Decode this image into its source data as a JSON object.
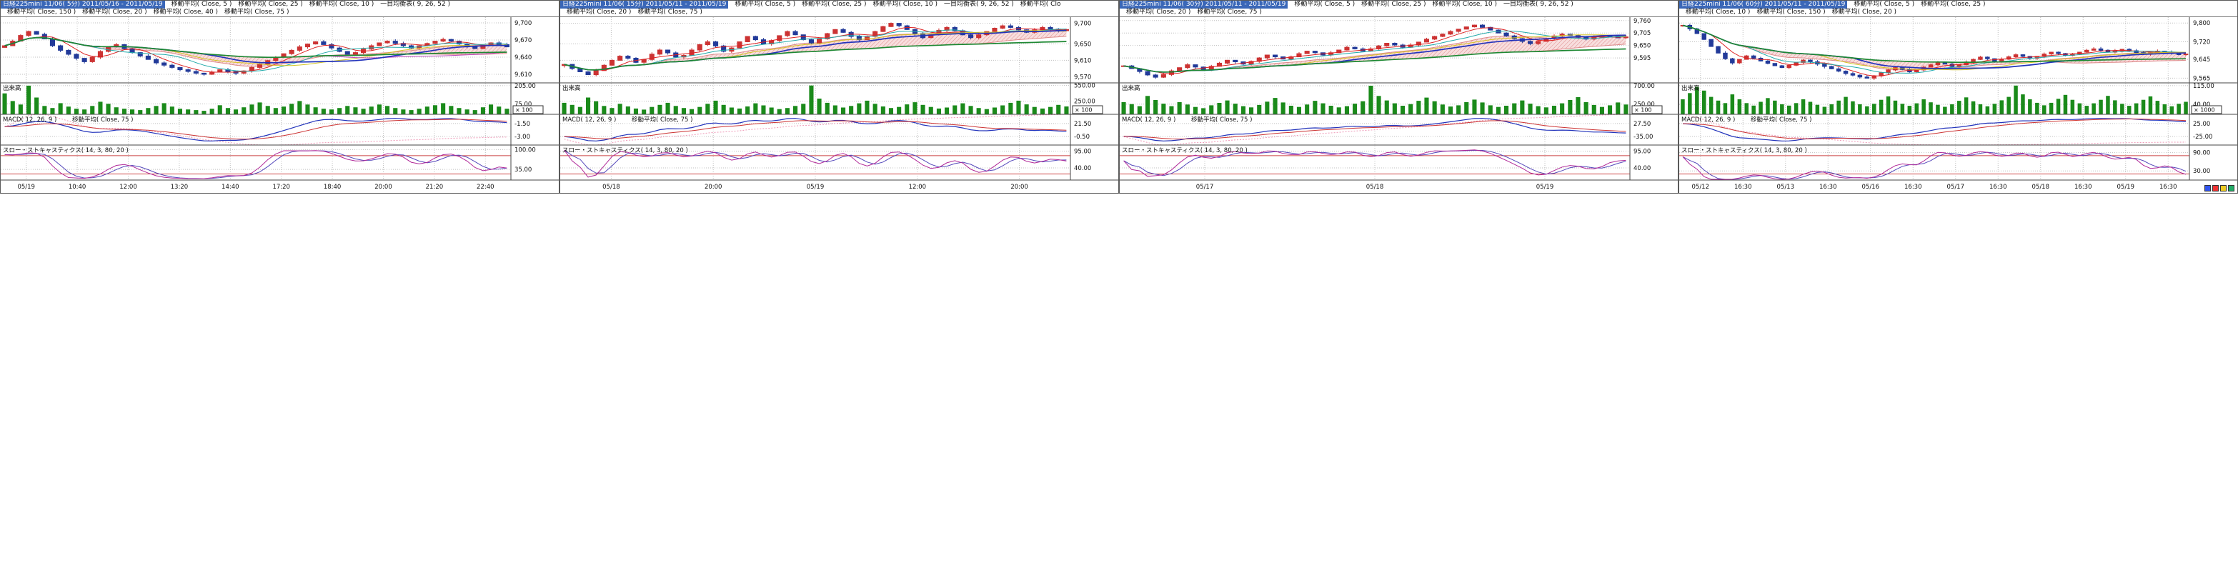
{
  "colors": {
    "up": "#cc3333",
    "down": "#223a99",
    "volume": "#1a8a1a",
    "grid": "#c0c0c0",
    "separator": "#444444",
    "macd_line": "#2233bb",
    "macd_signal": "#cc3333",
    "macd_ma": "#ee9ab8",
    "stoch_k": "#b02898",
    "stoch_d": "#5548bb",
    "stoch_ref": "#cc4444",
    "cloud_line": "#dd8a8a",
    "cloud_fill": "#f8dede",
    "axis_text": "#111111"
  },
  "p4_toolbar": [
    "#3355ee",
    "#ee3333",
    "#eecc22",
    "#22aa66"
  ],
  "chart_data": [
    {
      "type": "candlestick",
      "title": "日経225mini 11/06( 5分) 2011/05/16 - 2011/05/19",
      "legend_row1": [
        "移動平均( Close, 5 )",
        "移動平均( Close, 25 )",
        "移動平均( Close, 10 )",
        "一目均衡表( 9, 26, 52 )"
      ],
      "legend_row2": [
        "移動平均( Close, 150 )",
        "移動平均( Close, 20 )",
        "移動平均( Close, 40 )",
        "移動平均( Close, 75 )"
      ],
      "pane_labels": {
        "volume": "出来高",
        "macd": "MACD( 12, 26, 9 )",
        "macd_ma": "移動平均( Close, 75 )",
        "stoch": "スロー・ストキャスティクス( 14, 3, 80, 20 )"
      },
      "price_axis": {
        "labels": [
          "9,700",
          "9,670",
          "9,640",
          "9,610"
        ],
        "values": [
          9700,
          9670,
          9640,
          9610
        ],
        "range": [
          9595,
          9710
        ]
      },
      "volume_axis": {
        "labels": [
          "205.00",
          "75.00"
        ],
        "values": [
          205,
          75
        ],
        "max": 225,
        "unit": "× 100"
      },
      "macd_axis": {
        "labels": [
          "-1.50",
          "-3.00"
        ]
      },
      "stoch_axis": {
        "labels": [
          "100.00",
          "35.00"
        ],
        "values": [
          100,
          35
        ],
        "ref": [
          80,
          20
        ]
      },
      "x_labels": [
        "05/19",
        "10:40",
        "12:00",
        "13:20",
        "14:40",
        "17:20",
        "18:40",
        "20:00",
        "21:20",
        "22:40"
      ],
      "ma_overlays": [
        {
          "period": 5,
          "color": "#dd2222",
          "width": 1
        },
        {
          "period": 10,
          "color": "#22aaaa",
          "width": 1
        },
        {
          "period": 20,
          "color": "#d4c422",
          "width": 1
        },
        {
          "period": 40,
          "color": "#bb44bb",
          "width": 1
        },
        {
          "period": 25,
          "color": "#2233bb",
          "width": 1.7
        },
        {
          "period": 150,
          "color": "#1e8833",
          "width": 1.7
        }
      ],
      "closes": [
        9660,
        9668,
        9678,
        9685,
        9680,
        9672,
        9660,
        9652,
        9645,
        9638,
        9632,
        9640,
        9650,
        9658,
        9662,
        9655,
        9648,
        9642,
        9636,
        9630,
        9626,
        9622,
        9618,
        9615,
        9612,
        9610,
        9614,
        9618,
        9615,
        9612,
        9616,
        9622,
        9628,
        9634,
        9640,
        9646,
        9652,
        9658,
        9663,
        9667,
        9662,
        9656,
        9650,
        9645,
        9648,
        9654,
        9660,
        9665,
        9668,
        9664,
        9660,
        9656,
        9660,
        9664,
        9668,
        9671,
        9668,
        9663,
        9658,
        9655,
        9660,
        9665,
        9662,
        9658
      ],
      "volumes": [
        150,
        95,
        70,
        205,
        120,
        60,
        45,
        80,
        55,
        40,
        35,
        60,
        90,
        75,
        50,
        40,
        35,
        30,
        45,
        60,
        80,
        55,
        40,
        35,
        30,
        25,
        40,
        65,
        45,
        35,
        50,
        70,
        85,
        60,
        45,
        55,
        75,
        95,
        70,
        50,
        40,
        35,
        45,
        60,
        50,
        40,
        55,
        70,
        60,
        45,
        35,
        30,
        40,
        55,
        65,
        80,
        60,
        45,
        35,
        30,
        50,
        70,
        55,
        40
      ]
    },
    {
      "type": "candlestick",
      "title": "日経225mini 11/06( 15分) 2011/05/11 - 2011/05/19",
      "legend_row1": [
        "移動平均( Close, 5 )",
        "移動平均( Close, 25 )",
        "移動平均( Close, 10 )",
        "一目均衡表( 9, 26, 52 )",
        "移動平均( Clo"
      ],
      "legend_row2": [
        "移動平均( Close, 20 )",
        "移動平均( Close, 75 )"
      ],
      "pane_labels": {
        "volume": "出来高",
        "macd": "MACD( 12, 26, 9 )",
        "macd_ma": "移動平均( Close, 75 )",
        "stoch": "スロー・ストキャスティクス( 14, 3, 80, 20 )"
      },
      "price_axis": {
        "labels": [
          "9,700",
          "9,650",
          "9,610",
          "9,570"
        ],
        "values": [
          9700,
          9650,
          9610,
          9570
        ],
        "range": [
          9555,
          9715
        ]
      },
      "volume_axis": {
        "labels": [
          "550.00",
          "250.00"
        ],
        "values": [
          550,
          250
        ],
        "max": 600,
        "unit": "× 100"
      },
      "macd_axis": {
        "labels": [
          "21.50",
          "-0.50"
        ]
      },
      "stoch_axis": {
        "labels": [
          "95.00",
          "40.00"
        ],
        "values": [
          95,
          40
        ],
        "ref": [
          80,
          20
        ]
      },
      "x_labels": [
        "05/18",
        "20:00",
        "05/19",
        "12:00",
        "20:00"
      ],
      "ma_overlays": [
        {
          "period": 5,
          "color": "#dd2222",
          "width": 1
        },
        {
          "period": 10,
          "color": "#22aaaa",
          "width": 1
        },
        {
          "period": 20,
          "color": "#d4c422",
          "width": 1
        },
        {
          "period": 25,
          "color": "#2233bb",
          "width": 1.7
        },
        {
          "period": 150,
          "color": "#1e8833",
          "width": 1.7
        }
      ],
      "closes": [
        9600,
        9590,
        9582,
        9575,
        9585,
        9598,
        9610,
        9620,
        9615,
        9605,
        9612,
        9625,
        9635,
        9628,
        9618,
        9622,
        9635,
        9648,
        9655,
        9645,
        9632,
        9640,
        9655,
        9668,
        9660,
        9650,
        9658,
        9670,
        9680,
        9672,
        9660,
        9652,
        9662,
        9675,
        9685,
        9678,
        9668,
        9660,
        9668,
        9680,
        9692,
        9700,
        9694,
        9685,
        9675,
        9665,
        9672,
        9683,
        9690,
        9682,
        9672,
        9665,
        9672,
        9680,
        9688,
        9694,
        9690,
        9684,
        9678,
        9684,
        9690,
        9686,
        9682,
        9685
      ],
      "volumes": [
        220,
        180,
        140,
        320,
        250,
        160,
        120,
        200,
        150,
        110,
        90,
        140,
        180,
        220,
        160,
        120,
        100,
        140,
        200,
        260,
        180,
        130,
        110,
        150,
        210,
        170,
        130,
        100,
        120,
        160,
        200,
        550,
        300,
        220,
        170,
        130,
        160,
        210,
        260,
        200,
        150,
        120,
        140,
        190,
        230,
        180,
        140,
        110,
        130,
        170,
        210,
        160,
        120,
        100,
        130,
        170,
        220,
        260,
        190,
        140,
        110,
        140,
        180,
        150
      ]
    },
    {
      "type": "candlestick",
      "title": "日経225mini 11/06( 30分) 2011/05/11 - 2011/05/19",
      "legend_row1": [
        "移動平均( Close, 5 )",
        "移動平均( Close, 25 )",
        "移動平均( Close, 10 )",
        "一目均衡表( 9, 26, 52 )"
      ],
      "legend_row2": [
        "移動平均( Close, 20 )",
        "移動平均( Close, 75 )"
      ],
      "pane_labels": {
        "volume": "出来高",
        "macd": "MACD( 12, 26, 9 )",
        "macd_ma": "移動平均( Close, 75 )",
        "stoch": "スロー・ストキャスティクス( 14, 3, 80, 20 )"
      },
      "price_axis": {
        "labels": [
          "9,760",
          "9,705",
          "9,650",
          "9,595"
        ],
        "values": [
          9760,
          9705,
          9650,
          9595
        ],
        "range": [
          9485,
          9775
        ]
      },
      "volume_axis": {
        "labels": [
          "700.00",
          "250.00"
        ],
        "values": [
          700,
          250
        ],
        "max": 770,
        "unit": "× 100"
      },
      "macd_axis": {
        "labels": [
          "27.50",
          "-35.00"
        ]
      },
      "stoch_axis": {
        "labels": [
          "95.00",
          "40.00"
        ],
        "values": [
          95,
          40
        ],
        "ref": [
          80,
          20
        ]
      },
      "x_labels": [
        "05/17",
        "05/18",
        "05/19"
      ],
      "ma_overlays": [
        {
          "period": 5,
          "color": "#dd2222",
          "width": 1
        },
        {
          "period": 10,
          "color": "#22aaaa",
          "width": 1
        },
        {
          "period": 20,
          "color": "#d4c422",
          "width": 1
        },
        {
          "period": 25,
          "color": "#2233bb",
          "width": 1.7
        },
        {
          "period": 150,
          "color": "#1e8833",
          "width": 1.7
        }
      ],
      "closes": [
        9560,
        9548,
        9535,
        9520,
        9510,
        9522,
        9538,
        9552,
        9565,
        9555,
        9545,
        9558,
        9572,
        9585,
        9578,
        9568,
        9580,
        9595,
        9608,
        9600,
        9590,
        9600,
        9614,
        9625,
        9618,
        9608,
        9618,
        9630,
        9642,
        9635,
        9625,
        9635,
        9648,
        9660,
        9652,
        9642,
        9652,
        9665,
        9678,
        9690,
        9700,
        9712,
        9722,
        9732,
        9740,
        9730,
        9718,
        9705,
        9692,
        9680,
        9668,
        9658,
        9668,
        9680,
        9692,
        9700,
        9694,
        9686,
        9678,
        9686,
        9694,
        9690,
        9684,
        9688
      ],
      "volumes": [
        300,
        250,
        200,
        450,
        350,
        260,
        200,
        300,
        240,
        180,
        150,
        220,
        280,
        340,
        260,
        200,
        170,
        230,
        310,
        400,
        290,
        210,
        180,
        240,
        330,
        270,
        210,
        170,
        200,
        260,
        320,
        700,
        450,
        340,
        270,
        210,
        250,
        330,
        410,
        320,
        240,
        190,
        220,
        300,
        360,
        290,
        220,
        180,
        210,
        270,
        340,
        260,
        200,
        170,
        210,
        270,
        350,
        420,
        300,
        230,
        180,
        220,
        290,
        240
      ]
    },
    {
      "type": "candlestick",
      "title": "日経225mini 11/06( 60分) 2011/05/11 - 2011/05/19",
      "legend_row1": [
        "移動平均( Close, 5 )",
        "移動平均( Close, 25 )"
      ],
      "legend_row2": [
        "移動平均( Close, 10 )",
        "移動平均( Close, 150 )",
        "移動平均( Close, 20 )"
      ],
      "pane_labels": {
        "volume": "出来高",
        "macd": "MACD( 12, 26, 9 )",
        "macd_ma": "移動平均( Close, 75 )",
        "stoch": "スロー・ストキャスティクス( 14, 3, 80, 20 )"
      },
      "price_axis": {
        "labels": [
          "9,800",
          "9,720",
          "9,645",
          "9,565"
        ],
        "values": [
          9800,
          9720,
          9645,
          9565
        ],
        "range": [
          9545,
          9825
        ]
      },
      "volume_axis": {
        "labels": [
          "115.00",
          "40.00"
        ],
        "values": [
          115,
          40
        ],
        "max": 126,
        "unit": "× 1000"
      },
      "macd_axis": {
        "labels": [
          "25.00",
          "-25.00"
        ]
      },
      "stoch_axis": {
        "labels": [
          "90.00",
          "30.00"
        ],
        "values": [
          90,
          30
        ],
        "ref": [
          80,
          20
        ]
      },
      "x_labels": [
        "05/12",
        "16:30",
        "05/13",
        "16:30",
        "05/16",
        "16:30",
        "05/17",
        "16:30",
        "05/18",
        "16:30",
        "05/19",
        "16:30"
      ],
      "ma_overlays": [
        {
          "period": 5,
          "color": "#dd2222",
          "width": 1
        },
        {
          "period": 10,
          "color": "#22aaaa",
          "width": 1
        },
        {
          "period": 20,
          "color": "#d4c422",
          "width": 1
        },
        {
          "period": 25,
          "color": "#2233bb",
          "width": 1.7
        },
        {
          "period": 150,
          "color": "#1e8833",
          "width": 1.7
        }
      ],
      "closes": [
        9790,
        9775,
        9755,
        9730,
        9700,
        9672,
        9648,
        9630,
        9645,
        9660,
        9650,
        9638,
        9628,
        9618,
        9610,
        9620,
        9632,
        9642,
        9635,
        9625,
        9615,
        9605,
        9595,
        9585,
        9578,
        9570,
        9565,
        9575,
        9588,
        9600,
        9610,
        9602,
        9592,
        9600,
        9612,
        9622,
        9632,
        9625,
        9615,
        9622,
        9634,
        9645,
        9655,
        9648,
        9638,
        9646,
        9656,
        9665,
        9658,
        9650,
        9658,
        9668,
        9676,
        9670,
        9662,
        9668,
        9676,
        9684,
        9690,
        9684,
        9676,
        9682,
        9688,
        9682,
        9674,
        9668,
        9674,
        9680,
        9676,
        9670,
        9665,
        9668
      ],
      "volumes": [
        60,
        85,
        110,
        95,
        70,
        55,
        45,
        80,
        60,
        45,
        35,
        50,
        65,
        55,
        40,
        35,
        45,
        60,
        50,
        38,
        30,
        40,
        55,
        70,
        52,
        40,
        32,
        42,
        58,
        72,
        55,
        42,
        34,
        44,
        60,
        48,
        38,
        30,
        40,
        54,
        68,
        52,
        40,
        32,
        42,
        56,
        70,
        115,
        80,
        60,
        46,
        36,
        46,
        62,
        78,
        58,
        44,
        34,
        44,
        58,
        74,
        56,
        42,
        34,
        44,
        58,
        72,
        54,
        40,
        32,
        42,
        50
      ]
    }
  ]
}
